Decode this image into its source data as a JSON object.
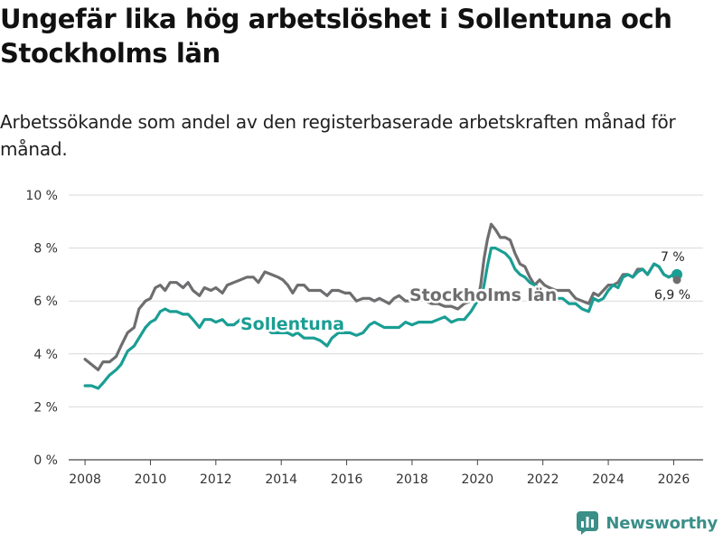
{
  "header": {
    "title": "Ungefär lika hög arbetslöshet i Sollentuna och Stockholms län",
    "subtitle": "Arbetssökande som andel av den registerbaserade arbetskraften månad för månad."
  },
  "brand": {
    "name": "Newsworthy",
    "logo_icon": "bar-chart-logo-icon",
    "color": "#3a8f88"
  },
  "chart_data": {
    "type": "line",
    "title": "Ungefär lika hög arbetslöshet i Sollentuna och Stockholms län",
    "xlabel": "",
    "ylabel": "",
    "xlim": [
      2007.5,
      2026.9
    ],
    "ylim": [
      0,
      10
    ],
    "x_ticks": [
      2008,
      2010,
      2012,
      2014,
      2016,
      2018,
      2020,
      2022,
      2024,
      2026
    ],
    "x_tick_labels": [
      "2008",
      "2010",
      "2012",
      "2014",
      "2016",
      "2018",
      "2020",
      "2022",
      "2024",
      "2026"
    ],
    "y_ticks": [
      0,
      2,
      4,
      6,
      8,
      10
    ],
    "y_tick_labels": [
      "0 %",
      "2 %",
      "4 %",
      "6 %",
      "8 %",
      "10 %"
    ],
    "grid": true,
    "series": [
      {
        "name": "Stockholms län",
        "color": "#6e6e70",
        "end_label": "6,9 %",
        "points": [
          [
            2008.0,
            3.8
          ],
          [
            2008.2,
            3.6
          ],
          [
            2008.4,
            3.4
          ],
          [
            2008.55,
            3.7
          ],
          [
            2008.75,
            3.7
          ],
          [
            2008.95,
            3.9
          ],
          [
            2009.1,
            4.3
          ],
          [
            2009.3,
            4.8
          ],
          [
            2009.5,
            5.0
          ],
          [
            2009.65,
            5.7
          ],
          [
            2009.85,
            6.0
          ],
          [
            2010.0,
            6.1
          ],
          [
            2010.15,
            6.5
          ],
          [
            2010.3,
            6.6
          ],
          [
            2010.45,
            6.4
          ],
          [
            2010.6,
            6.7
          ],
          [
            2010.8,
            6.7
          ],
          [
            2011.0,
            6.5
          ],
          [
            2011.15,
            6.7
          ],
          [
            2011.3,
            6.4
          ],
          [
            2011.5,
            6.2
          ],
          [
            2011.65,
            6.5
          ],
          [
            2011.85,
            6.4
          ],
          [
            2012.0,
            6.5
          ],
          [
            2012.2,
            6.3
          ],
          [
            2012.35,
            6.6
          ],
          [
            2012.55,
            6.7
          ],
          [
            2012.75,
            6.8
          ],
          [
            2012.95,
            6.9
          ],
          [
            2013.15,
            6.9
          ],
          [
            2013.3,
            6.7
          ],
          [
            2013.5,
            7.1
          ],
          [
            2013.7,
            7.0
          ],
          [
            2013.9,
            6.9
          ],
          [
            2014.05,
            6.8
          ],
          [
            2014.2,
            6.6
          ],
          [
            2014.35,
            6.3
          ],
          [
            2014.5,
            6.6
          ],
          [
            2014.7,
            6.6
          ],
          [
            2014.85,
            6.4
          ],
          [
            2015.0,
            6.4
          ],
          [
            2015.2,
            6.4
          ],
          [
            2015.4,
            6.2
          ],
          [
            2015.55,
            6.4
          ],
          [
            2015.75,
            6.4
          ],
          [
            2015.95,
            6.3
          ],
          [
            2016.1,
            6.3
          ],
          [
            2016.3,
            6.0
          ],
          [
            2016.5,
            6.1
          ],
          [
            2016.7,
            6.1
          ],
          [
            2016.85,
            6.0
          ],
          [
            2017.0,
            6.1
          ],
          [
            2017.15,
            6.0
          ],
          [
            2017.3,
            5.9
          ],
          [
            2017.45,
            6.1
          ],
          [
            2017.6,
            6.2
          ],
          [
            2017.8,
            6.0
          ],
          [
            2018.0,
            6.0
          ],
          [
            2018.2,
            6.1
          ],
          [
            2018.4,
            6.0
          ],
          [
            2018.6,
            5.9
          ],
          [
            2018.8,
            5.9
          ],
          [
            2019.0,
            5.8
          ],
          [
            2019.2,
            5.8
          ],
          [
            2019.4,
            5.7
          ],
          [
            2019.6,
            5.9
          ],
          [
            2019.8,
            6.0
          ],
          [
            2020.0,
            6.0
          ],
          [
            2020.1,
            6.6
          ],
          [
            2020.2,
            7.6
          ],
          [
            2020.3,
            8.3
          ],
          [
            2020.42,
            8.9
          ],
          [
            2020.55,
            8.7
          ],
          [
            2020.7,
            8.4
          ],
          [
            2020.85,
            8.4
          ],
          [
            2021.0,
            8.3
          ],
          [
            2021.15,
            7.8
          ],
          [
            2021.3,
            7.4
          ],
          [
            2021.45,
            7.3
          ],
          [
            2021.6,
            6.9
          ],
          [
            2021.75,
            6.6
          ],
          [
            2021.9,
            6.8
          ],
          [
            2022.05,
            6.6
          ],
          [
            2022.2,
            6.5
          ],
          [
            2022.4,
            6.4
          ],
          [
            2022.6,
            6.4
          ],
          [
            2022.8,
            6.4
          ],
          [
            2023.0,
            6.1
          ],
          [
            2023.2,
            6.0
          ],
          [
            2023.4,
            5.9
          ],
          [
            2023.55,
            6.3
          ],
          [
            2023.7,
            6.2
          ],
          [
            2023.85,
            6.4
          ],
          [
            2024.0,
            6.6
          ],
          [
            2024.15,
            6.6
          ],
          [
            2024.3,
            6.7
          ],
          [
            2024.45,
            7.0
          ],
          [
            2024.6,
            7.0
          ],
          [
            2024.75,
            6.9
          ],
          [
            2024.9,
            7.2
          ],
          [
            2025.05,
            7.2
          ],
          [
            2025.2,
            7.0
          ],
          [
            2025.4,
            7.4
          ],
          [
            2025.55,
            7.3
          ],
          [
            2025.7,
            7.0
          ],
          [
            2025.85,
            6.9
          ],
          [
            2026.0,
            7.0
          ],
          [
            2026.1,
            6.9
          ]
        ]
      },
      {
        "name": "Sollentuna",
        "color": "#1a9e94",
        "end_label": "7 %",
        "points": [
          [
            2008.0,
            2.8
          ],
          [
            2008.2,
            2.8
          ],
          [
            2008.4,
            2.7
          ],
          [
            2008.55,
            2.9
          ],
          [
            2008.75,
            3.2
          ],
          [
            2008.95,
            3.4
          ],
          [
            2009.1,
            3.6
          ],
          [
            2009.3,
            4.1
          ],
          [
            2009.5,
            4.3
          ],
          [
            2009.65,
            4.6
          ],
          [
            2009.85,
            5.0
          ],
          [
            2010.0,
            5.2
          ],
          [
            2010.15,
            5.3
          ],
          [
            2010.3,
            5.6
          ],
          [
            2010.45,
            5.7
          ],
          [
            2010.6,
            5.6
          ],
          [
            2010.8,
            5.6
          ],
          [
            2011.0,
            5.5
          ],
          [
            2011.15,
            5.5
          ],
          [
            2011.3,
            5.3
          ],
          [
            2011.5,
            5.0
          ],
          [
            2011.65,
            5.3
          ],
          [
            2011.85,
            5.3
          ],
          [
            2012.0,
            5.2
          ],
          [
            2012.2,
            5.3
          ],
          [
            2012.35,
            5.1
          ],
          [
            2012.55,
            5.1
          ],
          [
            2012.75,
            5.3
          ],
          [
            2012.95,
            5.2
          ],
          [
            2013.15,
            5.1
          ],
          [
            2013.3,
            5.0
          ],
          [
            2013.5,
            5.0
          ],
          [
            2013.7,
            4.8
          ],
          [
            2013.9,
            4.8
          ],
          [
            2014.05,
            4.8
          ],
          [
            2014.2,
            4.8
          ],
          [
            2014.35,
            4.7
          ],
          [
            2014.5,
            4.8
          ],
          [
            2014.7,
            4.6
          ],
          [
            2014.85,
            4.6
          ],
          [
            2015.0,
            4.6
          ],
          [
            2015.2,
            4.5
          ],
          [
            2015.4,
            4.3
          ],
          [
            2015.55,
            4.6
          ],
          [
            2015.75,
            4.8
          ],
          [
            2015.95,
            4.8
          ],
          [
            2016.1,
            4.8
          ],
          [
            2016.3,
            4.7
          ],
          [
            2016.5,
            4.8
          ],
          [
            2016.7,
            5.1
          ],
          [
            2016.85,
            5.2
          ],
          [
            2017.0,
            5.1
          ],
          [
            2017.15,
            5.0
          ],
          [
            2017.3,
            5.0
          ],
          [
            2017.45,
            5.0
          ],
          [
            2017.6,
            5.0
          ],
          [
            2017.8,
            5.2
          ],
          [
            2018.0,
            5.1
          ],
          [
            2018.2,
            5.2
          ],
          [
            2018.4,
            5.2
          ],
          [
            2018.6,
            5.2
          ],
          [
            2018.8,
            5.3
          ],
          [
            2019.0,
            5.4
          ],
          [
            2019.2,
            5.2
          ],
          [
            2019.4,
            5.3
          ],
          [
            2019.6,
            5.3
          ],
          [
            2019.8,
            5.6
          ],
          [
            2020.0,
            6.0
          ],
          [
            2020.1,
            6.0
          ],
          [
            2020.2,
            6.6
          ],
          [
            2020.3,
            7.3
          ],
          [
            2020.42,
            8.0
          ],
          [
            2020.55,
            8.0
          ],
          [
            2020.7,
            7.9
          ],
          [
            2020.85,
            7.8
          ],
          [
            2021.0,
            7.6
          ],
          [
            2021.15,
            7.2
          ],
          [
            2021.3,
            7.0
          ],
          [
            2021.45,
            6.9
          ],
          [
            2021.6,
            6.7
          ],
          [
            2021.75,
            6.6
          ],
          [
            2021.9,
            6.5
          ],
          [
            2022.05,
            6.3
          ],
          [
            2022.2,
            6.1
          ],
          [
            2022.4,
            6.1
          ],
          [
            2022.6,
            6.1
          ],
          [
            2022.8,
            5.9
          ],
          [
            2023.0,
            5.9
          ],
          [
            2023.2,
            5.7
          ],
          [
            2023.4,
            5.6
          ],
          [
            2023.55,
            6.1
          ],
          [
            2023.7,
            6.0
          ],
          [
            2023.85,
            6.1
          ],
          [
            2024.0,
            6.4
          ],
          [
            2024.15,
            6.6
          ],
          [
            2024.3,
            6.5
          ],
          [
            2024.45,
            6.9
          ],
          [
            2024.6,
            7.0
          ],
          [
            2024.75,
            6.9
          ],
          [
            2024.9,
            7.1
          ],
          [
            2025.05,
            7.2
          ],
          [
            2025.2,
            7.0
          ],
          [
            2025.4,
            7.4
          ],
          [
            2025.55,
            7.3
          ],
          [
            2025.7,
            7.0
          ],
          [
            2025.85,
            6.9
          ],
          [
            2026.0,
            7.0
          ],
          [
            2026.1,
            7.0
          ]
        ]
      }
    ]
  }
}
